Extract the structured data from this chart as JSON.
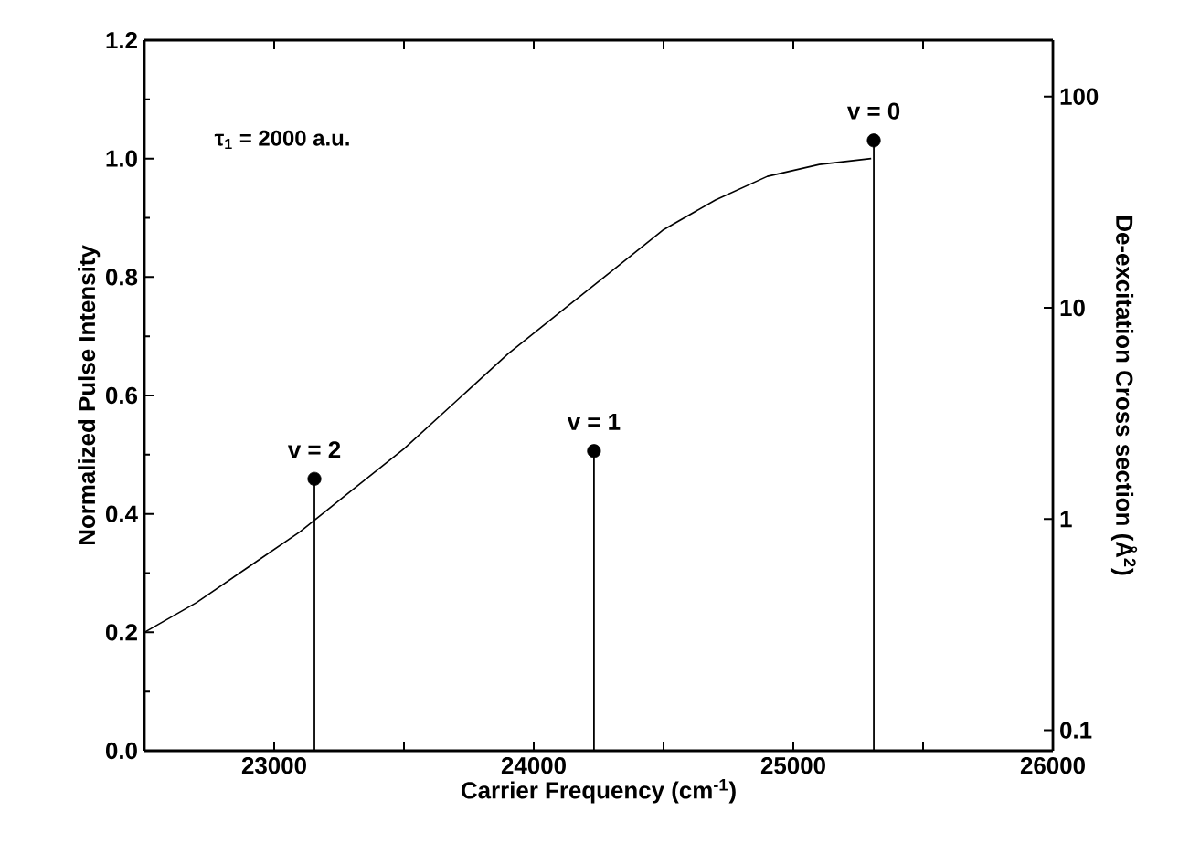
{
  "chart_data": {
    "type": "line",
    "xlabel": "Carrier Frequency (cm$^{-1}$)",
    "ylabel": "Normalized Pulse Intensity",
    "y2label": "De-excitation Cross section (Å$^{2}$)",
    "annotations": [
      "τ$_{1}$ = 2000 a.u."
    ],
    "xlim": [
      22500,
      26000
    ],
    "xticks": [
      {
        "value": 22500,
        "label": null
      },
      23000,
      {
        "value": 23500,
        "label": null
      },
      24000,
      {
        "value": 24500,
        "label": null
      },
      25000,
      {
        "value": 25500,
        "label": null
      },
      26000
    ],
    "ylim": [
      0,
      1.2
    ],
    "yticks": [
      {
        "value": 0,
        "label": "0.0"
      },
      0.2,
      0.4,
      0.6,
      0.8,
      {
        "value": 1,
        "label": "1.0"
      },
      1.2
    ],
    "y2lim": [
      0.08,
      185
    ],
    "y2ticks": [
      0.1,
      1,
      10,
      100
    ],
    "log": "y2",
    "series": [
      {
        "color": "#000000",
        "x": [
          22500,
          22700,
          22900,
          23100,
          23300,
          23500,
          23700,
          23900,
          24100,
          24300,
          24500,
          24700,
          24900,
          25100,
          25300
        ],
        "values": [
          0.2,
          0.25,
          0.31,
          0.37,
          0.44,
          0.51,
          0.59,
          0.67,
          0.74,
          0.81,
          0.88,
          0.93,
          0.97,
          0.99,
          1.0
        ]
      },
      {
        "type": "lollipop",
        "name": "v = 2",
        "axis": "y2",
        "marker": "circle",
        "color": "#000000",
        "x": [
          23155
        ],
        "values": [
          1.55
        ]
      },
      {
        "type": "lollipop",
        "name": "v = 1",
        "axis": "y2",
        "marker": "circle",
        "color": "#000000",
        "x": [
          24232
        ],
        "values": [
          2.1
        ]
      },
      {
        "type": "lollipop",
        "name": "v = 0",
        "axis": "y2",
        "marker": "circle",
        "color": "#000000",
        "x": [
          25310
        ],
        "values": [
          62
        ]
      }
    ]
  }
}
